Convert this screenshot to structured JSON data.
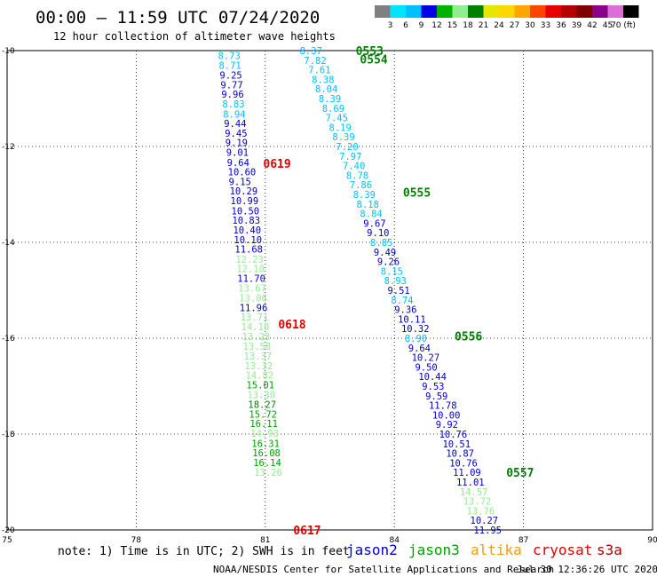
{
  "header": {
    "title": "00:00 – 11:59 UTC 07/24/2020",
    "subtitle": "12 hour collection of altimeter wave heights"
  },
  "colorbar": {
    "labels": [
      "3",
      "6",
      "9",
      "12",
      "15",
      "18",
      "21",
      "24",
      "27",
      "30",
      "33",
      "36",
      "39",
      "42",
      "45",
      "70 (ft)"
    ],
    "colors": [
      "#808080",
      "#00e5ff",
      "#00bfff",
      "#0000e6",
      "#00b300",
      "#90ee90",
      "#008000",
      "#e6e600",
      "#ffd700",
      "#ffa500",
      "#ff4500",
      "#e60000",
      "#b40000",
      "#800000",
      "#8b008b",
      "#da70d6",
      "#000000"
    ]
  },
  "chart_data": {
    "type": "scatter",
    "title": "00:00 – 11:59 UTC 07/24/2020",
    "subtitle": "12 hour collection of altimeter wave heights",
    "xlim": [
      75,
      90
    ],
    "ylim": [
      -20,
      -10
    ],
    "x_ticks": [
      "75",
      "78",
      "81",
      "84",
      "87",
      "90"
    ],
    "y_ticks": [
      "-10",
      "-12",
      "-14",
      "-16",
      "-18",
      "-20"
    ],
    "grid": true,
    "series": [
      {
        "name": "jason2",
        "color": "#0000cc",
        "passes": [
          {
            "label": "0617",
            "label_color": "#e00000",
            "label_lat": -20,
            "label_lon": 81.65,
            "points": [
              {
                "lon": 79.9,
                "lat": -10.1,
                "v": "8.73"
              },
              {
                "lon": 79.92,
                "lat": -10.31,
                "v": "8.71"
              },
              {
                "lon": 79.94,
                "lat": -10.51,
                "v": "9.25"
              },
              {
                "lon": 79.96,
                "lat": -10.71,
                "v": "9.77"
              },
              {
                "lon": 79.98,
                "lat": -10.91,
                "v": "9.96"
              },
              {
                "lon": 80.0,
                "lat": -11.11,
                "v": "8.83"
              },
              {
                "lon": 80.02,
                "lat": -11.32,
                "v": "8.94"
              },
              {
                "lon": 80.04,
                "lat": -11.52,
                "v": "9.44"
              },
              {
                "lon": 80.06,
                "lat": -11.72,
                "v": "9.45"
              },
              {
                "lon": 80.07,
                "lat": -11.92,
                "v": "9.19"
              },
              {
                "lon": 80.09,
                "lat": -12.12,
                "v": "9.01"
              },
              {
                "lon": 80.11,
                "lat": -12.33,
                "v": "9.64"
              },
              {
                "lon": 80.13,
                "lat": -12.53,
                "v": "10.60"
              },
              {
                "lon": 80.15,
                "lat": -12.73,
                "v": "9.15"
              },
              {
                "lon": 80.17,
                "lat": -12.93,
                "v": "10.29"
              },
              {
                "lon": 80.19,
                "lat": -13.13,
                "v": "10.99"
              },
              {
                "lon": 80.21,
                "lat": -13.34,
                "v": "10.50"
              },
              {
                "lon": 80.23,
                "lat": -13.54,
                "v": "10.83"
              },
              {
                "lon": 80.25,
                "lat": -13.74,
                "v": "10.40"
              },
              {
                "lon": 80.27,
                "lat": -13.94,
                "v": "10.10"
              },
              {
                "lon": 80.29,
                "lat": -14.14,
                "v": "11.68"
              },
              {
                "lon": 80.31,
                "lat": -14.35,
                "v": "12.23"
              },
              {
                "lon": 80.33,
                "lat": -14.55,
                "v": "12.10"
              },
              {
                "lon": 80.35,
                "lat": -14.75,
                "v": "11.70"
              },
              {
                "lon": 80.37,
                "lat": -14.95,
                "v": "13.67"
              },
              {
                "lon": 80.39,
                "lat": -15.16,
                "v": "13.06"
              },
              {
                "lon": 80.4,
                "lat": -15.36,
                "v": "11.96"
              },
              {
                "lon": 80.42,
                "lat": -15.56,
                "v": "13.71"
              },
              {
                "lon": 80.44,
                "lat": -15.76,
                "v": "14.10"
              },
              {
                "lon": 80.46,
                "lat": -15.96,
                "v": "13.23"
              },
              {
                "lon": 80.48,
                "lat": -16.17,
                "v": "13.58"
              },
              {
                "lon": 80.5,
                "lat": -16.37,
                "v": "13.37"
              },
              {
                "lon": 80.52,
                "lat": -16.57,
                "v": "13.32"
              },
              {
                "lon": 80.54,
                "lat": -16.77,
                "v": "14.82"
              },
              {
                "lon": 80.56,
                "lat": -16.97,
                "v": "15.01"
              },
              {
                "lon": 80.58,
                "lat": -17.18,
                "v": "13.30"
              },
              {
                "lon": 80.6,
                "lat": -17.38,
                "v": "18.27"
              },
              {
                "lon": 80.62,
                "lat": -17.58,
                "v": "15.72"
              },
              {
                "lon": 80.64,
                "lat": -17.78,
                "v": "16.11"
              },
              {
                "lon": 80.66,
                "lat": -17.98,
                "v": "14.93"
              },
              {
                "lon": 80.68,
                "lat": -18.19,
                "v": "16.31"
              },
              {
                "lon": 80.7,
                "lat": -18.39,
                "v": "16.08"
              },
              {
                "lon": 80.72,
                "lat": -18.59,
                "v": "16.14"
              },
              {
                "lon": 80.74,
                "lat": -18.8,
                "v": "13.26"
              }
            ]
          },
          {
            "label": "0618",
            "label_color": "#e00000",
            "label_lat": -15.7,
            "label_lon": 81.3,
            "points": []
          },
          {
            "label": "0619",
            "label_color": "#e00000",
            "label_lat": -12.35,
            "label_lon": 80.95,
            "points": []
          },
          {
            "label": "0553",
            "label_color": "#008000",
            "label_lat": -10.0,
            "label_lon": 83.1,
            "points": [
              {
                "lon": 81.8,
                "lat": -10.0,
                "v": "8.37"
              },
              {
                "lon": 81.9,
                "lat": -10.2,
                "v": "7.82"
              },
              {
                "lon": 82.0,
                "lat": -10.4,
                "v": "7.61"
              },
              {
                "lon": 82.08,
                "lat": -10.6,
                "v": "8.38"
              },
              {
                "lon": 82.16,
                "lat": -10.8,
                "v": "8.04"
              },
              {
                "lon": 82.24,
                "lat": -11.0,
                "v": "8.39"
              },
              {
                "lon": 82.32,
                "lat": -11.2,
                "v": "8.69"
              },
              {
                "lon": 82.4,
                "lat": -11.4,
                "v": "7.45"
              },
              {
                "lon": 82.48,
                "lat": -11.6,
                "v": "8.19"
              },
              {
                "lon": 82.56,
                "lat": -11.8,
                "v": "8.39"
              },
              {
                "lon": 82.64,
                "lat": -12.0,
                "v": "7.20"
              },
              {
                "lon": 82.72,
                "lat": -12.2,
                "v": "7.97"
              },
              {
                "lon": 82.8,
                "lat": -12.4,
                "v": "7.40"
              },
              {
                "lon": 82.88,
                "lat": -12.6,
                "v": "8.78"
              },
              {
                "lon": 82.96,
                "lat": -12.8,
                "v": "7.86"
              },
              {
                "lon": 83.04,
                "lat": -13.0,
                "v": "8.39"
              },
              {
                "lon": 83.12,
                "lat": -13.2,
                "v": "8.18"
              },
              {
                "lon": 83.2,
                "lat": -13.4,
                "v": "8.84"
              },
              {
                "lon": 83.28,
                "lat": -13.6,
                "v": "9.67"
              },
              {
                "lon": 83.36,
                "lat": -13.8,
                "v": "9.10"
              },
              {
                "lon": 83.44,
                "lat": -14.0,
                "v": "8.85"
              },
              {
                "lon": 83.52,
                "lat": -14.2,
                "v": "9.49"
              },
              {
                "lon": 83.6,
                "lat": -14.4,
                "v": "9.26"
              },
              {
                "lon": 83.68,
                "lat": -14.6,
                "v": "8.15"
              },
              {
                "lon": 83.76,
                "lat": -14.8,
                "v": "8.93"
              },
              {
                "lon": 83.84,
                "lat": -15.0,
                "v": "9.51"
              },
              {
                "lon": 83.92,
                "lat": -15.2,
                "v": "8.74"
              },
              {
                "lon": 84.0,
                "lat": -15.4,
                "v": "9.36"
              },
              {
                "lon": 84.08,
                "lat": -15.6,
                "v": "10.11"
              },
              {
                "lon": 84.16,
                "lat": -15.8,
                "v": "10.32"
              },
              {
                "lon": 84.24,
                "lat": -16.0,
                "v": "8.90"
              },
              {
                "lon": 84.32,
                "lat": -16.2,
                "v": "9.64"
              },
              {
                "lon": 84.4,
                "lat": -16.4,
                "v": "10.27"
              },
              {
                "lon": 84.48,
                "lat": -16.6,
                "v": "9.50"
              },
              {
                "lon": 84.56,
                "lat": -16.8,
                "v": "10.44"
              },
              {
                "lon": 84.64,
                "lat": -17.0,
                "v": "9.53"
              },
              {
                "lon": 84.72,
                "lat": -17.2,
                "v": "9.59"
              },
              {
                "lon": 84.8,
                "lat": -17.4,
                "v": "11.78"
              },
              {
                "lon": 84.88,
                "lat": -17.6,
                "v": "10.00"
              },
              {
                "lon": 84.96,
                "lat": -17.8,
                "v": "9.92"
              },
              {
                "lon": 85.04,
                "lat": -18.0,
                "v": "10.76"
              },
              {
                "lon": 85.12,
                "lat": -18.2,
                "v": "10.51"
              },
              {
                "lon": 85.2,
                "lat": -18.4,
                "v": "10.87"
              },
              {
                "lon": 85.28,
                "lat": -18.6,
                "v": "10.76"
              },
              {
                "lon": 85.36,
                "lat": -18.8,
                "v": "11.09"
              },
              {
                "lon": 85.44,
                "lat": -19.0,
                "v": "11.01"
              },
              {
                "lon": 85.52,
                "lat": -19.2,
                "v": "14.57"
              },
              {
                "lon": 85.6,
                "lat": -19.4,
                "v": "13.72"
              },
              {
                "lon": 85.68,
                "lat": -19.6,
                "v": "13.76"
              },
              {
                "lon": 85.76,
                "lat": -19.8,
                "v": "10.27"
              },
              {
                "lon": 85.84,
                "lat": -20.0,
                "v": "11.95"
              }
            ]
          },
          {
            "label": "0554",
            "label_color": "#008000",
            "label_lat": -10.18,
            "label_lon": 83.2,
            "points": []
          },
          {
            "label": "0555",
            "label_color": "#008000",
            "label_lat": -12.95,
            "label_lon": 84.2,
            "points": []
          },
          {
            "label": "0556",
            "label_color": "#008000",
            "label_lat": -15.95,
            "label_lon": 85.4,
            "points": []
          },
          {
            "label": "0557",
            "label_color": "#008000",
            "label_lat": -18.8,
            "label_lon": 86.6,
            "points": []
          }
        ]
      }
    ]
  },
  "footer": {
    "note": "note: 1) Time is in UTC; 2) SWH is in feet",
    "satellites": [
      {
        "name": "jason2",
        "color": "#0000cc"
      },
      {
        "name": "jason3",
        "color": "#00a000"
      },
      {
        "name": "altika",
        "color": "#ff9900"
      },
      {
        "name": "cryosat",
        "color": "#e00000"
      },
      {
        "name": "s3a",
        "color": "#b00000"
      }
    ],
    "credit": "NOAA/NESDIS Center for Satellite Applications and Research",
    "timestamp": "Jul 30 12:36:26 UTC 2020"
  }
}
